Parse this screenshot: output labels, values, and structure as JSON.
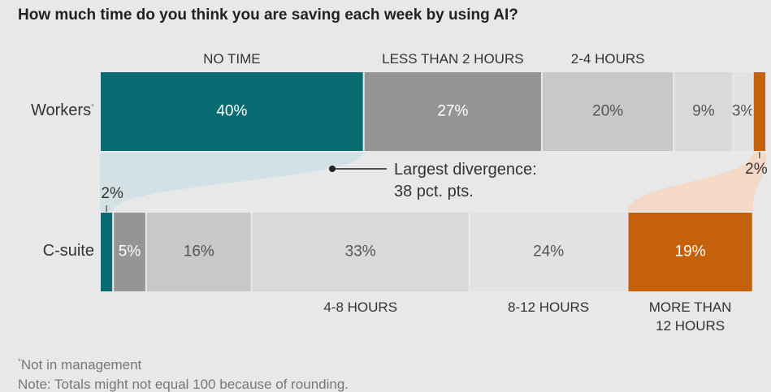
{
  "chart_data": {
    "type": "stacked-bar",
    "title": "How much time do you think you are saving each week by using AI?",
    "categories": [
      "Workers",
      "C-suite"
    ],
    "footnote_marker": "*",
    "series": [
      {
        "name": "NO TIME",
        "color": "#0a6b73",
        "values": [
          40,
          2
        ],
        "value_labels": [
          "40%",
          "2%"
        ]
      },
      {
        "name": "LESS THAN 2 HOURS",
        "color": "#959595",
        "values": [
          27,
          5
        ],
        "value_labels": [
          "27%",
          "5%"
        ]
      },
      {
        "name": "2-4 HOURS",
        "color": "#c8c8c8",
        "values": [
          20,
          16
        ],
        "value_labels": [
          "20%",
          "16%"
        ]
      },
      {
        "name": "4-8 HOURS",
        "color": "#d8d9da",
        "values": [
          9,
          33
        ],
        "value_labels": [
          "9%",
          "33%"
        ]
      },
      {
        "name": "8-12 HOURS",
        "color": "#e1e2e3",
        "values": [
          3,
          24
        ],
        "value_labels": [
          "3%",
          "24%"
        ]
      },
      {
        "name": "MORE THAN 12 HOURS",
        "color": "#c4610a",
        "values": [
          2,
          19
        ],
        "value_labels": [
          "2%",
          "19%"
        ]
      }
    ],
    "xlim": [
      0,
      101
    ],
    "annotation": [
      "Largest divergence:",
      "38 pct. pts."
    ],
    "footnotes": [
      "Not in management",
      "Note: Totals might not equal 100 because of rounding."
    ]
  }
}
